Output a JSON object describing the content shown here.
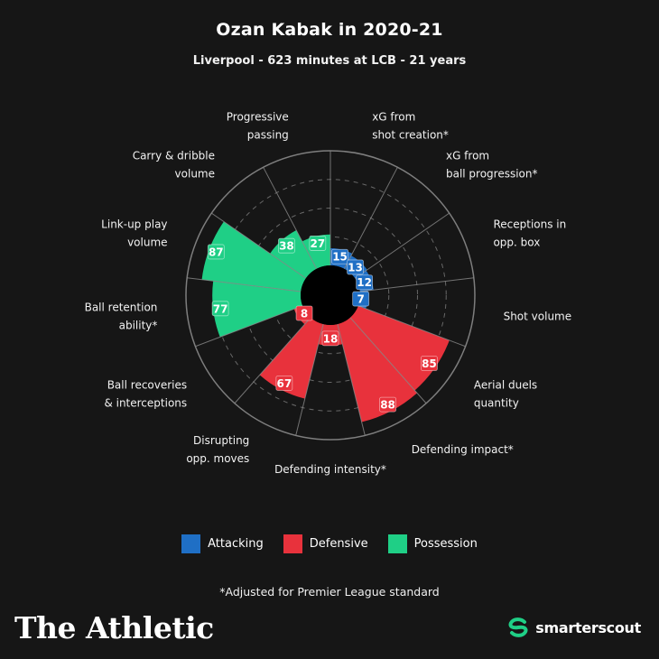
{
  "header": {
    "title": "Ozan Kabak in 2020-21",
    "subtitle": "Liverpool - 623 minutes at LCB - 21 years"
  },
  "colors": {
    "background": "#161616",
    "attacking": "#1f6fc5",
    "defensive": "#e8323c",
    "possession": "#1fcf86",
    "grid": "#8a8a8a"
  },
  "legend": [
    {
      "label": "Attacking",
      "color": "#1f6fc5"
    },
    {
      "label": "Defensive",
      "color": "#e8323c"
    },
    {
      "label": "Possession",
      "color": "#1fcf86"
    }
  ],
  "footnote": "*Adjusted for Premier League standard",
  "branding": {
    "left": "The Athletic",
    "right": "smarterscout"
  },
  "chart_data": {
    "type": "polar-bar",
    "scale": [
      0,
      100
    ],
    "gridlines": [
      25,
      50,
      75,
      100
    ],
    "categories": [
      {
        "label": [
          "xG from",
          "shot creation*"
        ],
        "value": 15,
        "group": "Attacking"
      },
      {
        "label": [
          "xG from",
          "ball progression*"
        ],
        "value": 13,
        "group": "Attacking"
      },
      {
        "label": [
          "Receptions in",
          "opp. box"
        ],
        "value": 12,
        "group": "Attacking"
      },
      {
        "label": [
          "Shot volume"
        ],
        "value": 7,
        "group": "Attacking"
      },
      {
        "label": [
          "Aerial duels",
          "quantity"
        ],
        "value": 85,
        "group": "Defensive"
      },
      {
        "label": [
          "Defending impact*"
        ],
        "value": 88,
        "group": "Defensive"
      },
      {
        "label": [
          "Defending intensity*"
        ],
        "value": 18,
        "group": "Defensive"
      },
      {
        "label": [
          "Disrupting",
          "opp. moves"
        ],
        "value": 67,
        "group": "Defensive"
      },
      {
        "label": [
          "Ball recoveries",
          "& interceptions"
        ],
        "value": 8,
        "group": "Defensive"
      },
      {
        "label": [
          "Ball retention",
          "ability*"
        ],
        "value": 77,
        "group": "Possession"
      },
      {
        "label": [
          "Link-up play",
          "volume"
        ],
        "value": 87,
        "group": "Possession"
      },
      {
        "label": [
          "Carry & dribble",
          "volume"
        ],
        "value": 38,
        "group": "Possession"
      },
      {
        "label": [
          "Progressive",
          "passing"
        ],
        "value": 27,
        "group": "Possession"
      }
    ]
  }
}
